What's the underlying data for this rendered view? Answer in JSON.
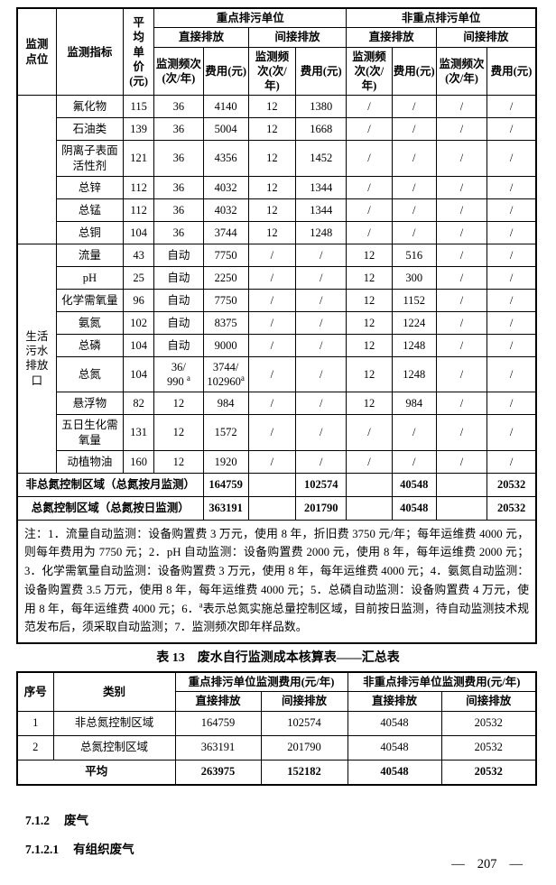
{
  "main_table": {
    "header": {
      "point": "监测\n点位",
      "indicator": "监测指标",
      "price": "平\n均\n单\n价\n(元)",
      "group_key": "重点排污单位",
      "group_nonkey": "非重点排污单位",
      "direct": "直接排放",
      "indirect": "间接排放",
      "freq": "监测频次(次/年)",
      "fee": "费用(元)"
    },
    "groups": [
      {
        "point": "",
        "rows": [
          {
            "indicator": "氟化物",
            "price": "115",
            "cells": [
              "36",
              "4140",
              "12",
              "1380",
              "/",
              "/",
              "/",
              "/"
            ]
          },
          {
            "indicator": "石油类",
            "price": "139",
            "cells": [
              "36",
              "5004",
              "12",
              "1668",
              "/",
              "/",
              "/",
              "/"
            ]
          },
          {
            "indicator": "阴离子表面活性剂",
            "price": "121",
            "cells": [
              "36",
              "4356",
              "12",
              "1452",
              "/",
              "/",
              "/",
              "/"
            ]
          },
          {
            "indicator": "总锌",
            "price": "112",
            "cells": [
              "36",
              "4032",
              "12",
              "1344",
              "/",
              "/",
              "/",
              "/"
            ]
          },
          {
            "indicator": "总锰",
            "price": "112",
            "cells": [
              "36",
              "4032",
              "12",
              "1344",
              "/",
              "/",
              "/",
              "/"
            ]
          },
          {
            "indicator": "总铜",
            "price": "104",
            "cells": [
              "36",
              "3744",
              "12",
              "1248",
              "/",
              "/",
              "/",
              "/"
            ]
          }
        ]
      },
      {
        "point": "生活\n污水\n排放\n口",
        "rows": [
          {
            "indicator": "流量",
            "price": "43",
            "cells": [
              "自动",
              "7750",
              "/",
              "/",
              "12",
              "516",
              "/",
              "/"
            ]
          },
          {
            "indicator": "pH",
            "price": "25",
            "cells": [
              "自动",
              "2250",
              "/",
              "/",
              "12",
              "300",
              "/",
              "/"
            ]
          },
          {
            "indicator": "化学需氧量",
            "price": "96",
            "cells": [
              "自动",
              "7750",
              "/",
              "/",
              "12",
              "1152",
              "/",
              "/"
            ]
          },
          {
            "indicator": "氨氮",
            "price": "102",
            "cells": [
              "自动",
              "8375",
              "/",
              "/",
              "12",
              "1224",
              "/",
              "/"
            ]
          },
          {
            "indicator": "总磷",
            "price": "104",
            "cells": [
              "自动",
              "9000",
              "/",
              "/",
              "12",
              "1248",
              "/",
              "/"
            ]
          },
          {
            "indicator": "总氮",
            "price": "104",
            "cells": [
              "36/\n990 ᵃ",
              "3744/\n102960ᵃ",
              "/",
              "/",
              "12",
              "1248",
              "/",
              "/"
            ]
          },
          {
            "indicator": "悬浮物",
            "price": "82",
            "cells": [
              "12",
              "984",
              "/",
              "/",
              "12",
              "984",
              "/",
              "/"
            ]
          },
          {
            "indicator": "五日生化需氧量",
            "price": "131",
            "cells": [
              "12",
              "1572",
              "/",
              "/",
              "/",
              "/",
              "/",
              "/"
            ]
          },
          {
            "indicator": "动植物油",
            "price": "160",
            "cells": [
              "12",
              "1920",
              "/",
              "/",
              "/",
              "/",
              "/",
              "/"
            ]
          }
        ]
      }
    ],
    "summary_rows": [
      {
        "label": "非总氮控制区域（总氮按月监测）",
        "cells": [
          "164759",
          "",
          "102574",
          "",
          "40548",
          "",
          "20532"
        ]
      },
      {
        "label": "总氮控制区域（总氮按日监测）",
        "cells": [
          "363191",
          "",
          "201790",
          "",
          "40548",
          "",
          "20532"
        ]
      }
    ],
    "note": "注：1．流量自动监测：设备购置费 3 万元，使用 8 年，折旧费 3750 元/年；每年运维费 4000 元，则每年费用为 7750 元；2．pH 自动监测：设备购置费 2000 元，使用 8 年，每年运维费 2000 元；3．化学需氧量自动监测：设备购置费 3 万元，使用 8 年，每年运维费 4000 元；4．氨氮自动监测：设备购置费 3.5 万元，使用 8 年，每年运维费 4000 元；5．总磷自动监测：设备购置费 4 万元，使用 8 年，每年运维费 4000 元；6．ᵃ表示总氮实施总量控制区域，目前按日监测，待自动监测技术规范发布后，须采取自动监测；7．监测频次即年样品数。"
  },
  "table13": {
    "caption": "表 13　废水自行监测成本核算表——汇总表",
    "header": {
      "no": "序号",
      "category": "类别",
      "group_key": "重点排污单位监测费用(元/年)",
      "group_nonkey": "非重点排污单位监测费用(元/年)",
      "direct": "直接排放",
      "indirect": "间接排放"
    },
    "rows": [
      {
        "no": "1",
        "label": "非总氮控制区域",
        "values": [
          "164759",
          "102574",
          "40548",
          "20532"
        ]
      },
      {
        "no": "2",
        "label": "总氮控制区域",
        "values": [
          "363191",
          "201790",
          "40548",
          "20532"
        ]
      }
    ],
    "avg": {
      "label": "平均",
      "values": [
        "263975",
        "152182",
        "40548",
        "20532"
      ]
    }
  },
  "sections": [
    {
      "num": "7.1.2",
      "title": "废气"
    },
    {
      "num": "7.1.2.1",
      "title": "有组织废气"
    }
  ],
  "page_number": {
    "dash_left": "—",
    "number": "207",
    "dash_right": "—"
  }
}
